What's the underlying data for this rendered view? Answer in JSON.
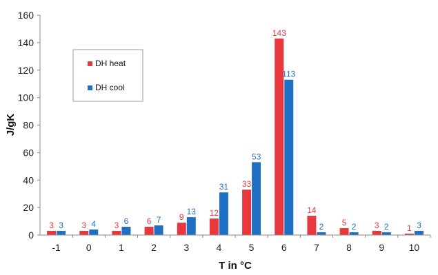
{
  "chart_data": {
    "type": "bar",
    "categories": [
      "-1",
      "0",
      "1",
      "2",
      "3",
      "4",
      "5",
      "6",
      "7",
      "8",
      "9",
      "10"
    ],
    "series": [
      {
        "name": "DH heat",
        "color": "#e8383d",
        "values": [
          3,
          3,
          3,
          6,
          9,
          12,
          33,
          143,
          14,
          5,
          3,
          1
        ]
      },
      {
        "name": "DH cool",
        "color": "#1f6fc5",
        "values": [
          3,
          4,
          6,
          7,
          13,
          31,
          53,
          113,
          2,
          2,
          2,
          3
        ]
      }
    ],
    "xlabel": "T in °C",
    "ylabel": "J/gK",
    "ylim": [
      0,
      160
    ],
    "yticks": [
      "0",
      "20",
      "40",
      "60",
      "80",
      "100",
      "120",
      "140",
      "160"
    ],
    "grid": false,
    "legend": "upper-left"
  }
}
